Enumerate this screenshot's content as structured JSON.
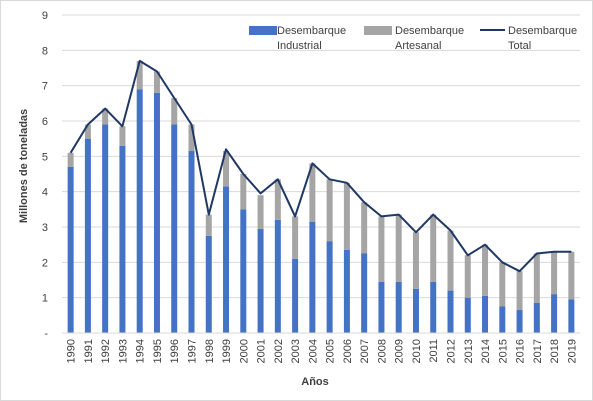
{
  "chart_data": {
    "type": "bar",
    "stacked": true,
    "categories": [
      "1990",
      "1991",
      "1992",
      "1993",
      "1994",
      "1995",
      "1996",
      "1997",
      "1998",
      "1999",
      "2000",
      "2001",
      "2002",
      "2003",
      "2004",
      "2005",
      "2006",
      "2007",
      "2008",
      "2009",
      "2010",
      "2011",
      "2012",
      "2013",
      "2014",
      "2015",
      "2016",
      "2017",
      "2018",
      "2019"
    ],
    "series": [
      {
        "name": "Desembarque Industrial",
        "type": "bar",
        "color": "#4472c4",
        "values": [
          4.7,
          5.5,
          5.9,
          5.3,
          6.9,
          6.8,
          5.9,
          5.15,
          2.75,
          4.15,
          3.5,
          2.95,
          3.2,
          2.1,
          3.15,
          2.6,
          2.35,
          2.25,
          1.45,
          1.45,
          1.25,
          1.45,
          1.2,
          1.0,
          1.05,
          0.75,
          0.65,
          0.85,
          1.1,
          0.95
        ]
      },
      {
        "name": "Desembarque Artesanal",
        "type": "bar",
        "color": "#a5a5a5",
        "values": [
          0.4,
          0.4,
          0.45,
          0.55,
          0.8,
          0.6,
          0.75,
          0.75,
          0.6,
          1.0,
          1.0,
          0.95,
          1.15,
          1.2,
          1.65,
          1.75,
          1.9,
          1.45,
          1.85,
          1.9,
          1.6,
          1.9,
          1.7,
          1.2,
          1.45,
          1.25,
          1.1,
          1.4,
          1.2,
          1.35
        ]
      },
      {
        "name": "Desembarque Total",
        "type": "line",
        "color": "#1f3864",
        "values": [
          5.1,
          5.9,
          6.35,
          5.85,
          7.7,
          7.4,
          6.65,
          5.9,
          3.35,
          5.2,
          4.5,
          3.95,
          4.35,
          3.3,
          4.8,
          4.35,
          4.25,
          3.7,
          3.3,
          3.35,
          2.85,
          3.35,
          2.9,
          2.2,
          2.5,
          2.0,
          1.75,
          2.25,
          2.3,
          2.3
        ]
      }
    ],
    "legend": {
      "position": "top-right",
      "items": [
        {
          "line1": "Desembarque",
          "line2": "Industrial"
        },
        {
          "line1": "Desembarque",
          "line2": "Artesanal"
        },
        {
          "line1": "Desembarque",
          "line2": "Total"
        }
      ]
    },
    "xlabel": "Años",
    "ylabel": "Millones de toneladas",
    "ylim": [
      0,
      9
    ],
    "yticks": [
      "-",
      "1",
      "2",
      "3",
      "4",
      "5",
      "6",
      "7",
      "8",
      "9"
    ],
    "grid": "horizontal"
  }
}
